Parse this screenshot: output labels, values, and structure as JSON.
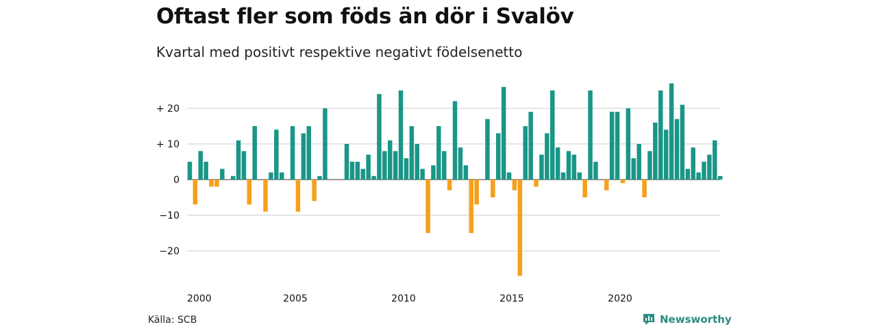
{
  "header": {
    "title": "Oftast fler som föds än dör i Svalöv",
    "subtitle": "Kvartal med positivt respektive negativt födelsenetto"
  },
  "footer": {
    "source": "Källa: SCB",
    "brand": "Newsworthy"
  },
  "colors": {
    "positive": "#1a9687",
    "negative": "#f5a01c",
    "grid": "#dddddd",
    "brand": "#2b8a7e"
  },
  "chart_data": {
    "type": "bar",
    "title": "Oftast fler som föds än dör i Svalöv",
    "subtitle": "Kvartal med positivt respektive negativt födelsenetto",
    "ylim": [
      -27,
      27
    ],
    "y_ticks": [
      {
        "value": 20,
        "label": "+ 20"
      },
      {
        "value": 10,
        "label": "+ 10"
      },
      {
        "value": 0,
        "label": "0"
      },
      {
        "value": -10,
        "label": "−10"
      },
      {
        "value": -20,
        "label": "−20"
      }
    ],
    "x_ticks": [
      {
        "year": 2000,
        "label": "2000"
      },
      {
        "year": 2005,
        "label": "2005"
      },
      {
        "year": 2010,
        "label": "2010"
      },
      {
        "year": 2015,
        "label": "2015"
      },
      {
        "year": 2020,
        "label": "2020"
      }
    ],
    "grid": true,
    "start_period": "2000Q1",
    "values": [
      5,
      -7,
      8,
      5,
      -2,
      -2,
      3,
      0,
      1,
      11,
      8,
      -7,
      15,
      0,
      -9,
      2,
      14,
      2,
      0,
      15,
      -9,
      13,
      15,
      -6,
      1,
      20,
      0,
      0,
      0,
      10,
      5,
      5,
      3,
      7,
      1,
      24,
      8,
      11,
      8,
      25,
      6,
      15,
      10,
      3,
      -15,
      4,
      15,
      8,
      -3,
      22,
      9,
      4,
      -15,
      -7,
      0,
      17,
      -5,
      13,
      26,
      2,
      -3,
      -27,
      15,
      19,
      -2,
      7,
      13,
      25,
      9,
      2,
      8,
      7,
      2,
      -5,
      25,
      5,
      0,
      -3,
      19,
      19,
      -1,
      20,
      6,
      10,
      -5,
      8,
      16,
      25,
      14,
      27,
      17,
      21,
      3,
      9,
      2,
      5,
      7,
      11,
      1
    ]
  }
}
